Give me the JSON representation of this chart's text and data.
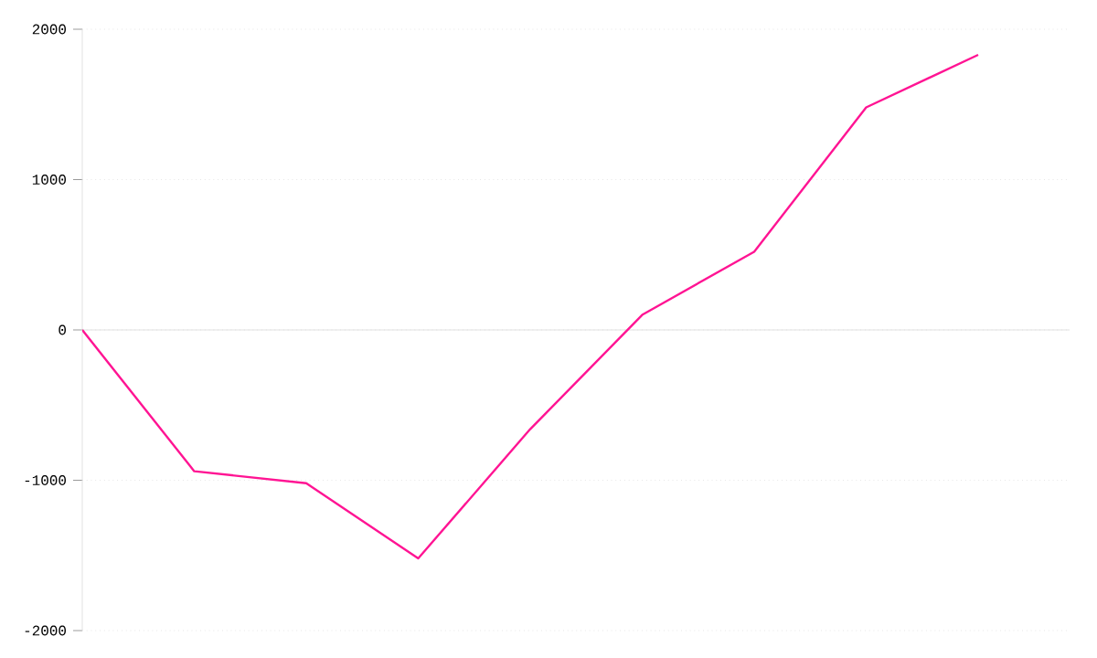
{
  "chart_data": {
    "type": "line",
    "categories": [
      null,
      null,
      null,
      null,
      null,
      null,
      null,
      null,
      null
    ],
    "series": [
      {
        "color": "#ff1493",
        "values": [
          0,
          -940,
          -1020,
          -1520,
          -660,
          100,
          520,
          1480,
          1830
        ]
      }
    ],
    "ylim": [
      -2000,
      2000
    ],
    "yticks": [
      -2000,
      -1000,
      0,
      1000,
      2000
    ],
    "grid": "y",
    "tick_labels": "y",
    "marker": "none",
    "line_style": "solid"
  }
}
